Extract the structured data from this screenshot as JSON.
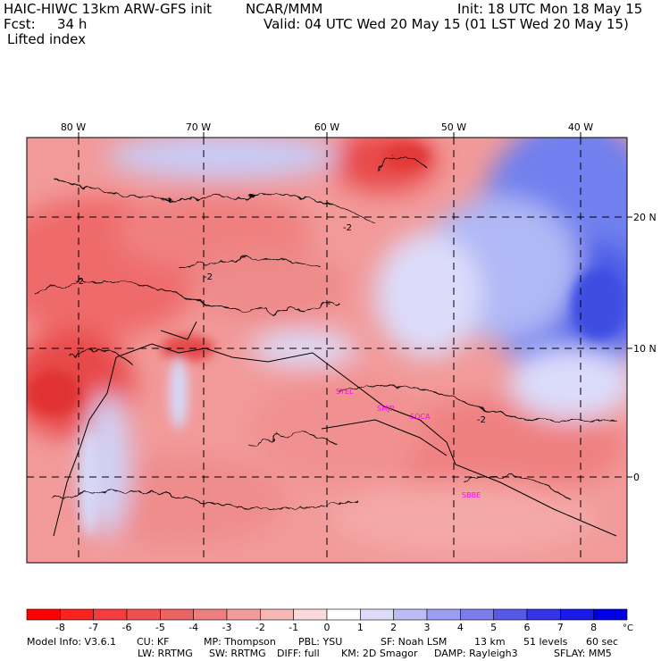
{
  "header": {
    "model_title": "HAIC-HIWC 13km ARW-GFS init",
    "org": "NCAR/MMM",
    "init": "Init: 18 UTC Mon 18 May 15",
    "fcst_label": "Fcst:",
    "fcst_value": "34 h",
    "valid": "Valid: 04 UTC Wed 20 May 15 (01 LST Wed 20 May 15)",
    "field": "Lifted index"
  },
  "map": {
    "lon_labels": [
      "80 W",
      "70 W",
      "60 W",
      "50 W",
      "40 W"
    ],
    "lat_labels": [
      "20 N",
      "10 N",
      "0"
    ],
    "stations": [
      "SYEL",
      "SMJP",
      "SOCA",
      "SBBE"
    ],
    "contour_label": "-2",
    "colors": {
      "warm_dark": "#ff0000",
      "warm": "#f06060",
      "warm_light": "#f8a8a8",
      "neutral": "#ffffff",
      "cool_light": "#c8c8f8",
      "cool": "#6070f0",
      "cool_dark": "#0000e0",
      "station": "#ff00ff"
    }
  },
  "colorbar": {
    "labels": [
      "-8",
      "-7",
      "-6",
      "-5",
      "-4",
      "-3",
      "-2",
      "-1",
      "0",
      "1",
      "2",
      "3",
      "4",
      "5",
      "6",
      "7",
      "8"
    ],
    "unit": "°C",
    "colors": [
      "#ff0000",
      "#fb2222",
      "#f53d3d",
      "#ef5050",
      "#ea6464",
      "#ee7f7f",
      "#f39c9c",
      "#f7b7b7",
      "#fcdada",
      "#ffffff",
      "#dcdcfa",
      "#bcbcf5",
      "#9c9cf0",
      "#7c7ceb",
      "#5858e6",
      "#3434e6",
      "#1a1ae8",
      "#0000e6"
    ]
  },
  "footer": {
    "line1": [
      "Model Info: V3.6.1",
      "CU: KF",
      "MP: Thompson",
      "PBL: YSU",
      "SF: Noah LSM",
      "13 km",
      "51 levels",
      "60 sec"
    ],
    "line2": [
      "LW: RRTMG",
      "SW: RRTMG",
      "DIFF: full",
      "KM: 2D Smagor",
      "DAMP: Rayleigh3",
      "SFLAY: MM5"
    ]
  }
}
